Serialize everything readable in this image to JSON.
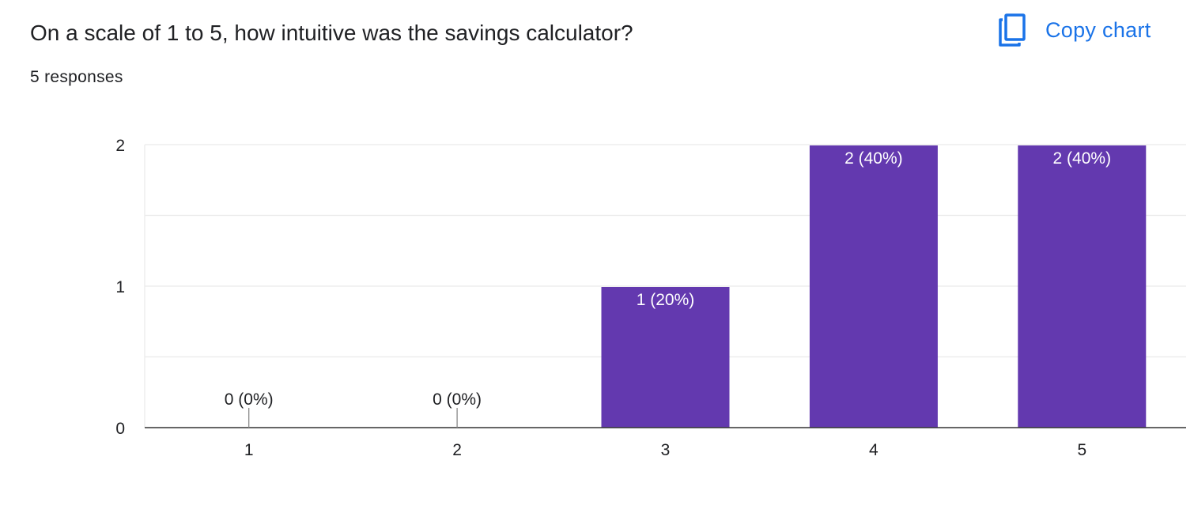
{
  "header": {
    "question": "On a scale of 1 to 5, how intuitive was the savings calculator?",
    "responses": "5 responses",
    "copy_chart_label": "Copy chart",
    "copy_icon": "copy-icon"
  },
  "colors": {
    "bar": "#6339af",
    "accent": "#1a73e8",
    "grid": "#ebebeb",
    "axis": "#333333",
    "text": "#202124"
  },
  "chart_data": {
    "type": "bar",
    "title": "",
    "xlabel": "",
    "ylabel": "",
    "categories": [
      "1",
      "2",
      "3",
      "4",
      "5"
    ],
    "values": [
      0,
      0,
      1,
      2,
      2
    ],
    "data_labels": [
      "0 (0%)",
      "0 (0%)",
      "1 (20%)",
      "2 (40%)",
      "2 (40%)"
    ],
    "ylim": [
      0,
      2
    ],
    "yticks": [
      0,
      1,
      2
    ],
    "grid": true,
    "legend": "none"
  }
}
